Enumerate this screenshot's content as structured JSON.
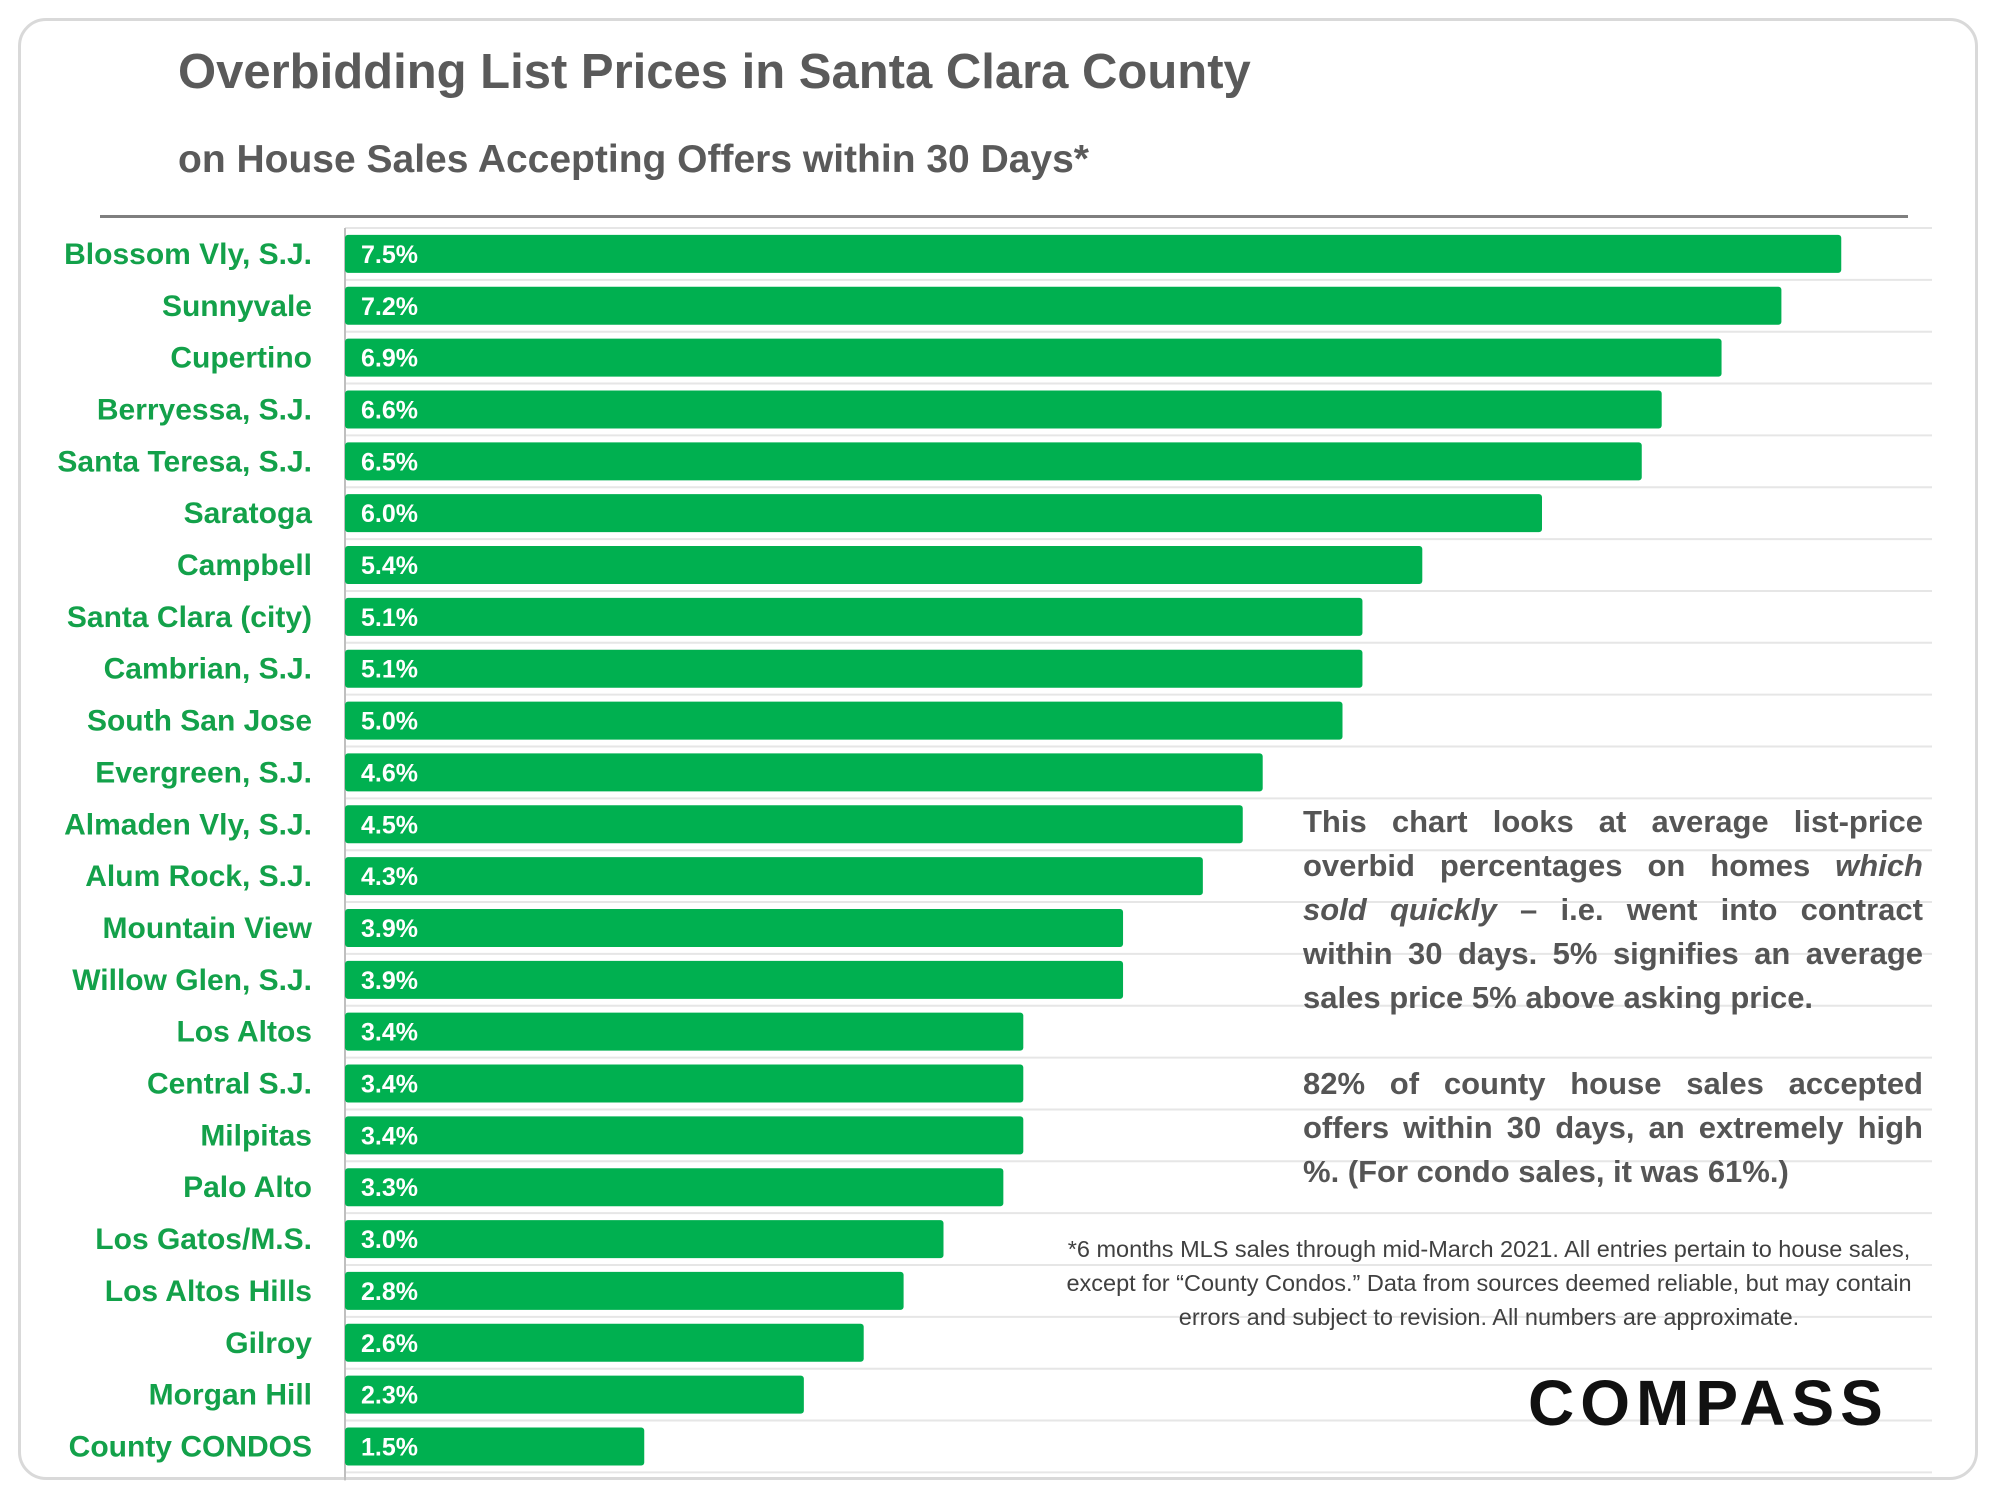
{
  "header": {
    "title": "Overbidding List Prices in Santa Clara County",
    "subtitle": "on House Sales Accepting Offers within 30 Days*"
  },
  "notes": {
    "para1_a": "This chart looks at average list-price overbid percentages on homes ",
    "para1_em": "which sold quickly",
    "para1_b": " – i.e. went into contract within 30 days. 5% signifies an average sales price 5% above asking price.",
    "para2": "82% of county house sales accepted offers within 30 days, an extremely high %. (For condo sales, it was 61%.)"
  },
  "footnote": "*6 months MLS sales through mid-March 2021. All entries pertain to house sales, except for “County Condos.” Data from sources deemed reliable, but may contain errors and subject to revision. All numbers are approximate.",
  "logo": "COMPASS",
  "colors": {
    "bar": "#00b050",
    "label": "#13a14a",
    "text": "#5a5a5a"
  },
  "chart_data": {
    "type": "bar",
    "orientation": "horizontal",
    "title": "Overbidding List Prices in Santa Clara County",
    "subtitle": "on House Sales Accepting Offers within 30 Days*",
    "categories": [
      "Blossom Vly, S.J.",
      "Sunnyvale",
      "Cupertino",
      "Berryessa, S.J.",
      "Santa Teresa, S.J.",
      "Saratoga",
      "Campbell",
      "Santa Clara (city)",
      "Cambrian, S.J.",
      "South San Jose",
      "Evergreen, S.J.",
      "Almaden Vly, S.J.",
      "Alum Rock, S.J.",
      "Mountain View",
      "Willow Glen, S.J.",
      "Los Altos",
      "Central S.J.",
      "Milpitas",
      "Palo Alto",
      "Los Gatos/M.S.",
      "Los Altos Hills",
      "Gilroy",
      "Morgan Hill",
      "County CONDOS"
    ],
    "values": [
      7.5,
      7.2,
      6.9,
      6.6,
      6.5,
      6.0,
      5.4,
      5.1,
      5.1,
      5.0,
      4.6,
      4.5,
      4.3,
      3.9,
      3.9,
      3.4,
      3.4,
      3.4,
      3.3,
      3.0,
      2.8,
      2.6,
      2.3,
      1.5
    ],
    "value_labels": [
      "7.5%",
      "7.2%",
      "6.9%",
      "6.6%",
      "6.5%",
      "6.0%",
      "5.4%",
      "5.1%",
      "5.1%",
      "5.0%",
      "4.6%",
      "4.5%",
      "4.3%",
      "3.9%",
      "3.9%",
      "3.4%",
      "3.4%",
      "3.4%",
      "3.3%",
      "3.0%",
      "2.8%",
      "2.6%",
      "2.3%",
      "1.5%"
    ],
    "unit": "%",
    "xlim": [
      0,
      8
    ],
    "grid": true,
    "legend": "none"
  }
}
